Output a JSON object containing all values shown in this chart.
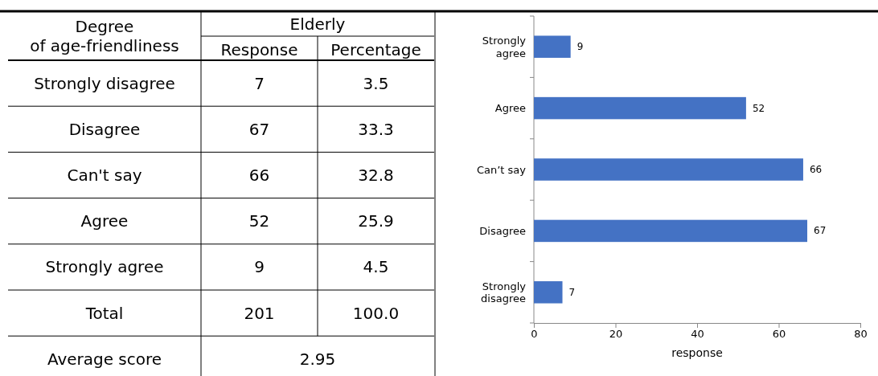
{
  "chart_data": [
    {
      "type": "other",
      "xlabel": "Degree of age-friendliness",
      "legend_title": "Elderly",
      "categories": [
        "Strongly disagree",
        "Disagree",
        "Can't say",
        "Agree",
        "Strongly agree",
        "Total"
      ],
      "series": [
        {
          "name": "Response",
          "values": [
            7,
            67,
            66,
            52,
            9,
            201
          ]
        },
        {
          "name": "Percentage",
          "values": [
            3.5,
            33.3,
            32.8,
            25.9,
            4.5,
            100.0
          ],
          "value_labels": [
            "3.5",
            "33.3",
            "32.8",
            "25.9",
            "4.5",
            "100.0"
          ]
        }
      ],
      "data_labels": true,
      "annotations": [
        "Average score",
        "2.95"
      ]
    },
    {
      "type": "bar",
      "orientation": "horizontal",
      "categories": [
        "Strongly agree",
        "Agree",
        "Can’t say",
        "Disagree",
        "Strongly disagree"
      ],
      "values": [
        9,
        52,
        66,
        67,
        7
      ],
      "color": "#4472c4",
      "xlim": [
        0,
        80
      ],
      "xticks": [
        0,
        20,
        40,
        60,
        80
      ],
      "xlabel": "response",
      "data_labels": true
    }
  ]
}
